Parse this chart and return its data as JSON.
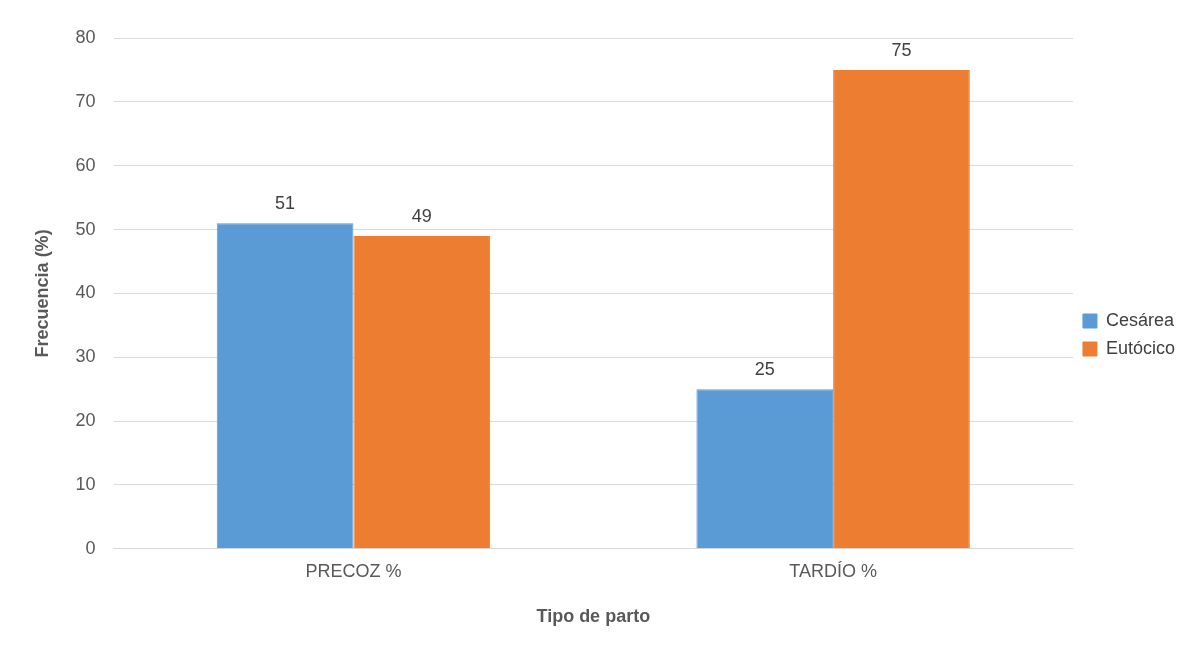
{
  "chart_data": {
    "type": "bar",
    "xlabel": "Tipo de parto",
    "ylabel": "Frecuencia (%)",
    "categories": [
      "PRECOZ %",
      "TARDÍO %"
    ],
    "series": [
      {
        "name": "Cesárea",
        "color": "#5b9bd5",
        "values": [
          51,
          25
        ]
      },
      {
        "name": "Eutócico",
        "color": "#ed7d31",
        "values": [
          49,
          75
        ]
      }
    ],
    "ylim": [
      0,
      80
    ],
    "yticks": [
      0,
      10,
      20,
      30,
      40,
      50,
      60,
      70,
      80
    ],
    "grid": "y",
    "legend": "right",
    "data_labels": true
  }
}
